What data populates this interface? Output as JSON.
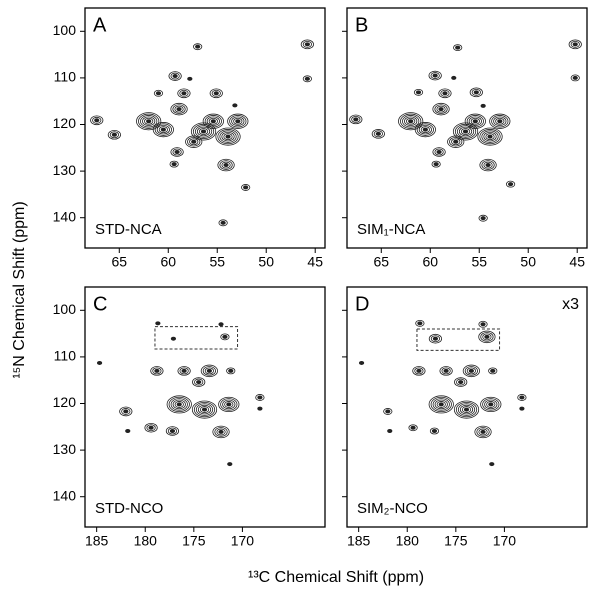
{
  "ylabel": "¹⁵N Chemical Shift (ppm)",
  "xlabel": "¹³C Chemical Shift (ppm)",
  "chart_data": [
    {
      "type": "contour",
      "panel": "A",
      "label": "STD-NCA",
      "xlim": [
        68.5,
        44
      ],
      "ylim": [
        95,
        146.5
      ],
      "xticks": [
        65,
        60,
        55,
        50,
        45
      ],
      "yticks": [
        100,
        110,
        120,
        130,
        140
      ],
      "x": [
        67.3,
        65.5,
        57.0,
        45.8,
        45.8,
        59.3,
        57.8,
        61.0,
        58.4,
        55.1,
        62.0,
        60.5,
        58.9,
        56.4,
        55.4,
        53.9,
        52.9,
        57.4,
        59.1,
        59.4,
        54.1,
        52.1,
        54.4,
        53.2
      ],
      "y": [
        119.1,
        122.2,
        103.3,
        102.8,
        110.2,
        109.6,
        110.2,
        113.3,
        113.3,
        113.3,
        119.3,
        121.1,
        116.7,
        121.5,
        119.3,
        122.6,
        119.3,
        123.7,
        125.9,
        128.5,
        128.7,
        133.5,
        141.1,
        115.9
      ],
      "levels": [
        3,
        3,
        2,
        3,
        2,
        3,
        1,
        2,
        3,
        3,
        6,
        5,
        4,
        6,
        5,
        6,
        5,
        4,
        3,
        2,
        4,
        2,
        2,
        1
      ]
    },
    {
      "type": "contour",
      "panel": "B",
      "label": "SIM₁-NCA",
      "xlim": [
        68.5,
        44
      ],
      "ylim": [
        95,
        146.5
      ],
      "xticks": [
        65,
        60,
        55,
        50,
        45
      ],
      "yticks": [
        100,
        110,
        120,
        130,
        140
      ],
      "x": [
        67.6,
        65.3,
        57.2,
        45.2,
        45.2,
        59.5,
        57.6,
        61.2,
        58.5,
        55.3,
        62.0,
        60.5,
        58.9,
        56.4,
        55.4,
        53.9,
        52.9,
        57.4,
        59.1,
        59.4,
        54.1,
        51.8,
        54.6,
        54.6
      ],
      "y": [
        118.9,
        122.0,
        103.5,
        102.8,
        110.0,
        109.5,
        110.0,
        113.1,
        113.3,
        113.1,
        119.3,
        121.1,
        116.7,
        121.5,
        119.3,
        122.6,
        119.3,
        123.7,
        125.9,
        128.5,
        128.7,
        132.8,
        140.1,
        116.0
      ],
      "levels": [
        3,
        3,
        2,
        3,
        2,
        3,
        1,
        2,
        3,
        3,
        6,
        5,
        4,
        6,
        5,
        6,
        5,
        4,
        3,
        2,
        4,
        2,
        2,
        1
      ]
    },
    {
      "type": "contour",
      "panel": "C",
      "label": "STD-NCO",
      "xlim": [
        186.2,
        161.5
      ],
      "ylim": [
        95,
        146.5
      ],
      "xticks": [
        185,
        180,
        175,
        170
      ],
      "yticks": [
        100,
        110,
        120,
        130,
        140
      ],
      "highlight_x": [
        179,
        170.5
      ],
      "highlight_y": [
        103.5,
        108.3
      ],
      "x": [
        178.7,
        177.1,
        172.2,
        171.8,
        184.7,
        178.8,
        176.0,
        173.4,
        171.2,
        174.5,
        176.5,
        173.9,
        172.2,
        171.4,
        182.0,
        179.4,
        177.2,
        181.8,
        168.2,
        168.2,
        171.3
      ],
      "y": [
        102.8,
        106.1,
        103.0,
        105.7,
        111.3,
        113.0,
        113.0,
        113.0,
        113.0,
        115.4,
        120.2,
        121.3,
        126.1,
        120.2,
        121.7,
        125.2,
        125.9,
        125.9,
        118.7,
        121.1,
        133.0
      ],
      "levels": [
        1,
        1,
        1,
        2,
        1,
        3,
        3,
        4,
        2,
        3,
        6,
        6,
        4,
        5,
        3,
        3,
        3,
        1,
        2,
        1,
        1
      ]
    },
    {
      "type": "contour",
      "panel": "D",
      "label": "SIM₂-NCO",
      "annotation": "x3",
      "xlim": [
        186.2,
        161.5
      ],
      "ylim": [
        95,
        146.5
      ],
      "xticks": [
        185,
        180,
        175,
        170
      ],
      "yticks": [
        100,
        110,
        120,
        130,
        140
      ],
      "highlight_x": [
        179,
        170.5
      ],
      "highlight_y": [
        104,
        108.6
      ],
      "x": [
        178.7,
        177.1,
        172.2,
        171.8,
        184.7,
        178.8,
        176.0,
        173.4,
        171.2,
        174.5,
        176.5,
        173.9,
        172.2,
        171.4,
        182.0,
        179.4,
        177.2,
        181.8,
        168.2,
        168.2,
        171.3
      ],
      "y": [
        102.8,
        106.1,
        103.0,
        105.7,
        111.3,
        113.0,
        113.0,
        113.0,
        113.0,
        115.4,
        120.2,
        121.3,
        126.1,
        120.2,
        121.7,
        125.2,
        125.9,
        125.9,
        118.7,
        121.1,
        133.0
      ],
      "levels": [
        2,
        3,
        2,
        4,
        1,
        3,
        3,
        4,
        2,
        3,
        6,
        6,
        4,
        5,
        2,
        2,
        2,
        1,
        2,
        1,
        1
      ]
    }
  ]
}
